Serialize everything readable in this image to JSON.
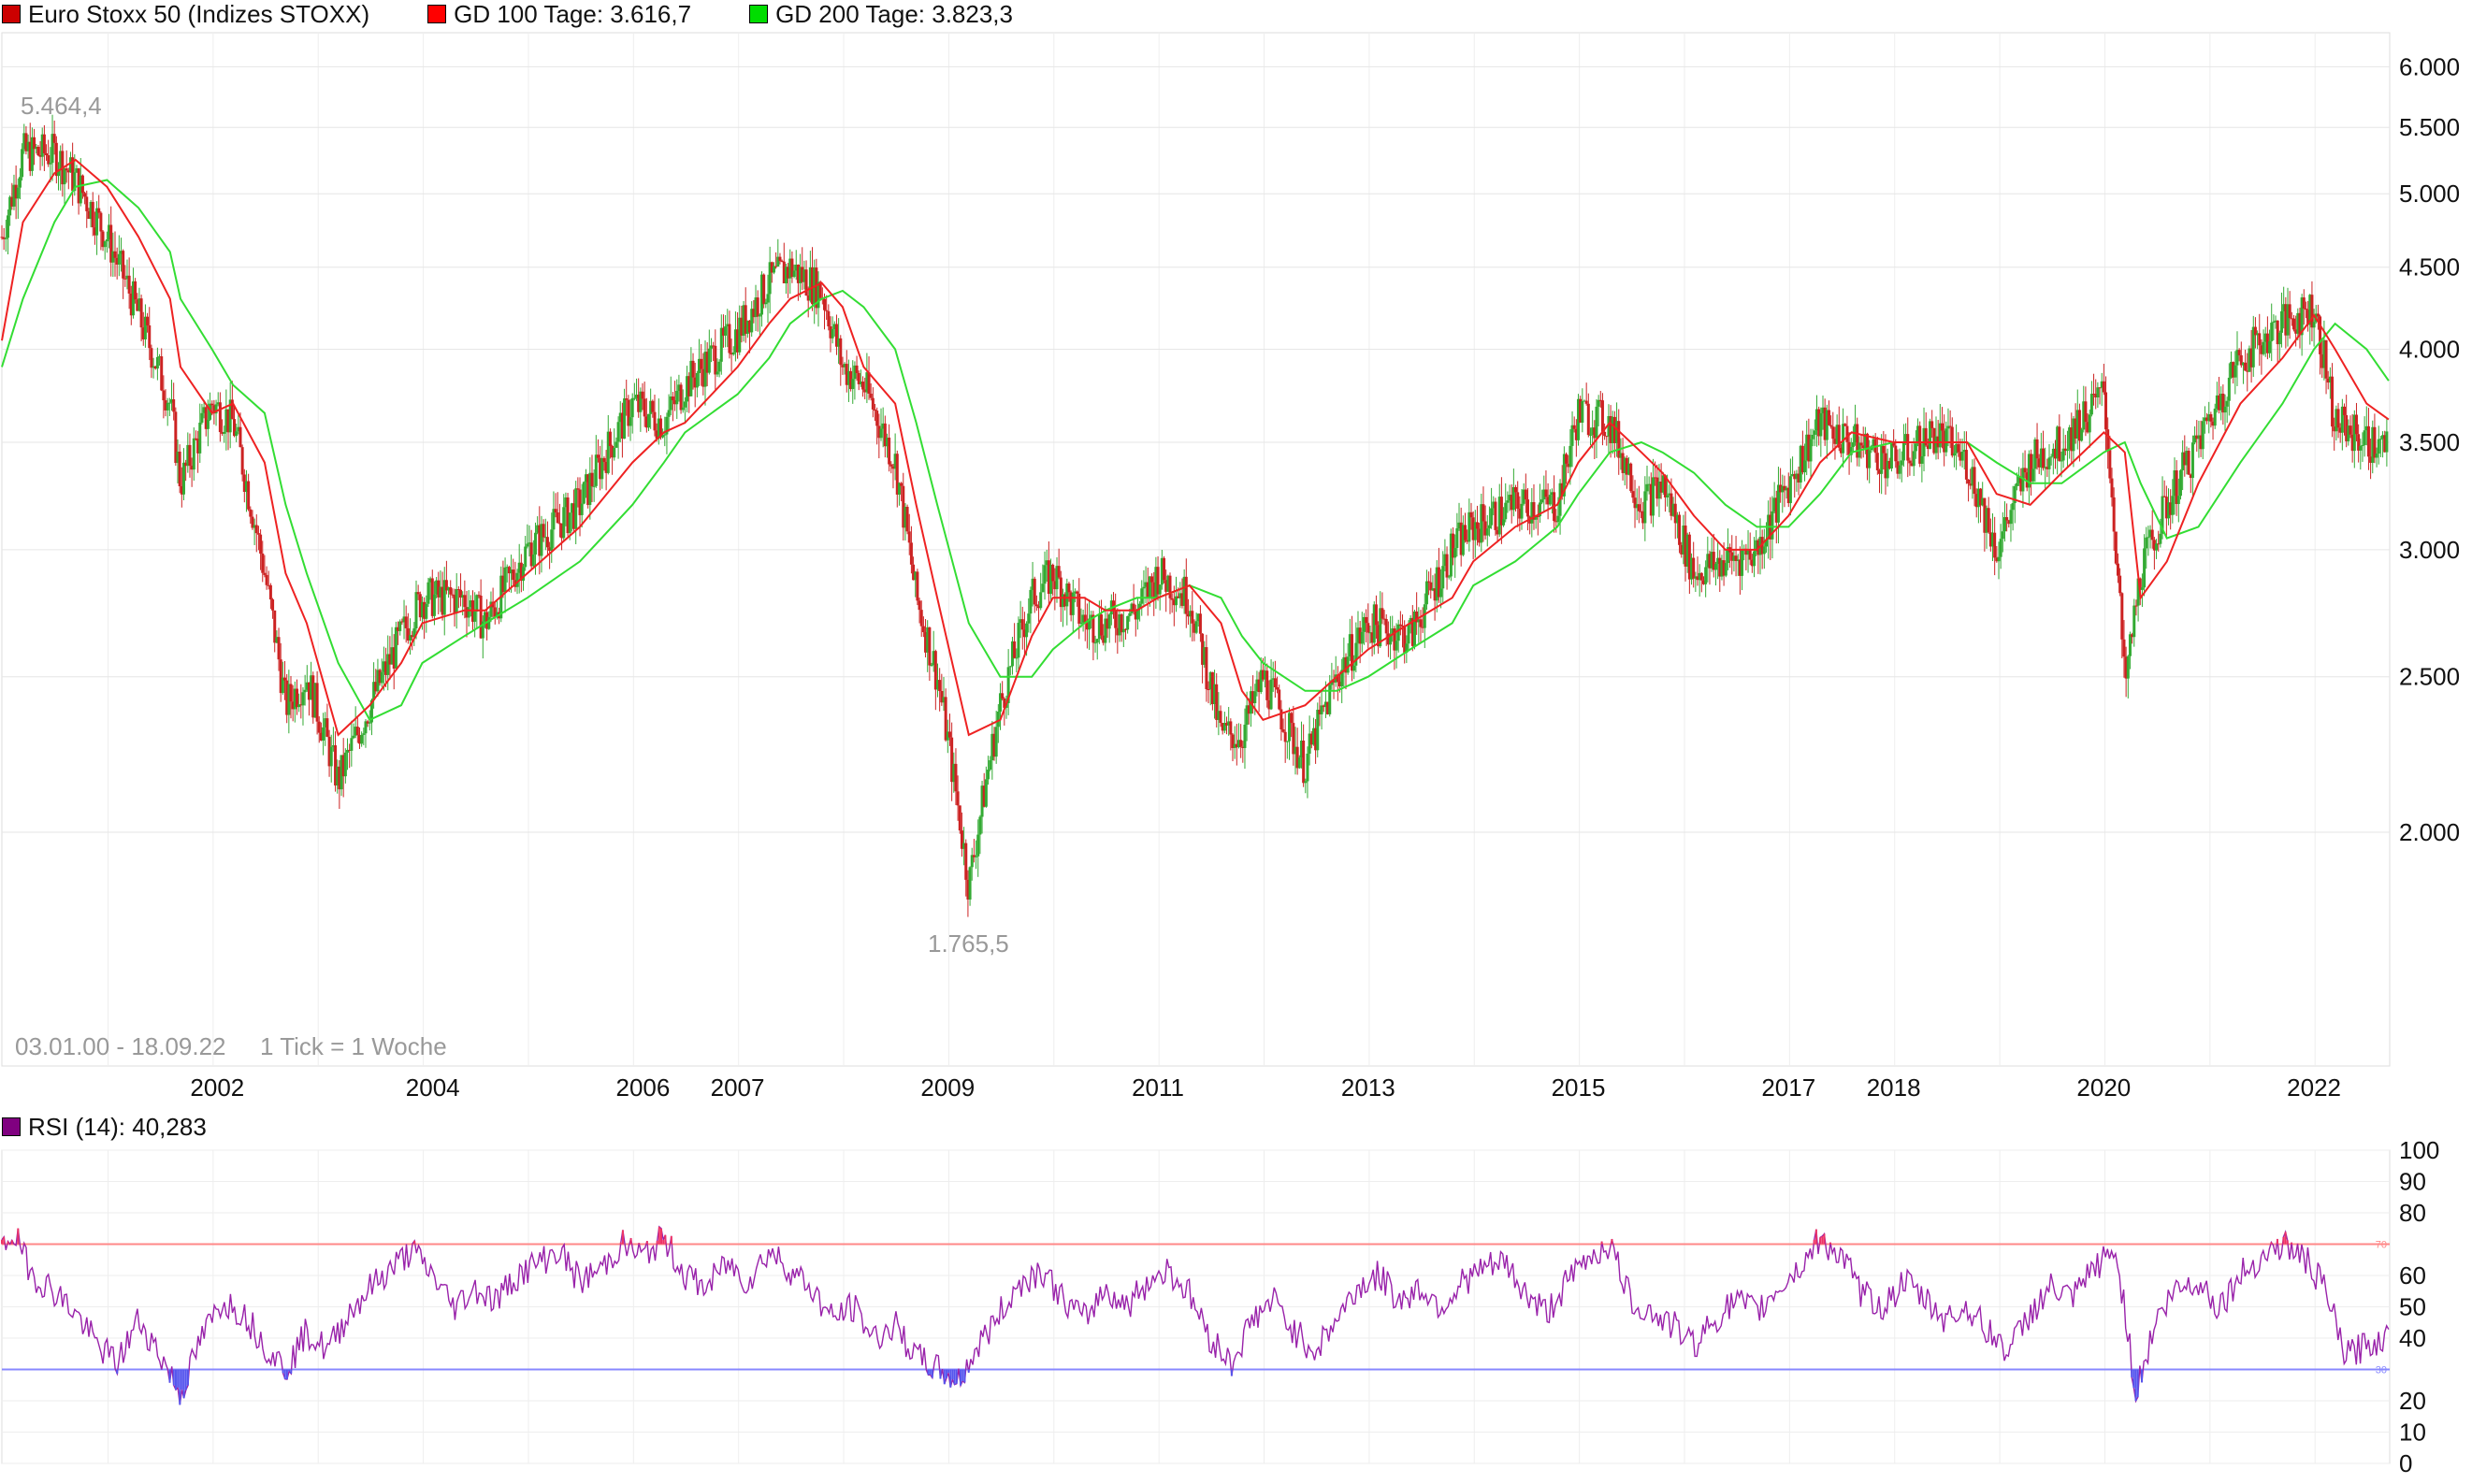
{
  "legend_top": [
    {
      "label": "Euro Stoxx 50 (Indizes STOXX)",
      "color": "#cc0000"
    },
    {
      "label": "GD 100 Tage: 3.616,7",
      "color": "#ff0000"
    },
    {
      "label": "GD 200 Tage: 3.823,3",
      "color": "#00dd00"
    }
  ],
  "legend_bottom": [
    {
      "label": "RSI (14): 40,283",
      "color": "#800080"
    }
  ],
  "chart_data": [
    {
      "type": "line",
      "subtype": "candlestick with moving averages",
      "title": "Euro Stoxx 50 (Indizes STOXX)",
      "scale": "log",
      "date_range_label": "03.01.00 - 18.09.22",
      "tick_label": "1 Tick = 1 Woche",
      "high_annotation": "5.464,4",
      "low_annotation": "1.765,5",
      "x_tick_labels": [
        "2002",
        "2004",
        "2006",
        "2007",
        "2009",
        "2011",
        "2013",
        "2015",
        "2017",
        "2018",
        "2020",
        "2022"
      ],
      "y_tick_labels": [
        "2.000",
        "2.500",
        "3.000",
        "3.500",
        "4.000",
        "4.500",
        "5.000",
        "5.500",
        "6.000"
      ],
      "ylim": [
        1430,
        6300
      ],
      "grid": true,
      "x": [
        2000.0,
        2000.2,
        2000.5,
        2000.7,
        2001.0,
        2001.3,
        2001.6,
        2001.7,
        2002.0,
        2002.2,
        2002.5,
        2002.7,
        2002.9,
        2003.2,
        2003.5,
        2003.8,
        2004.0,
        2004.4,
        2004.6,
        2005.0,
        2005.5,
        2006.0,
        2006.3,
        2006.5,
        2007.0,
        2007.3,
        2007.5,
        2007.8,
        2008.0,
        2008.2,
        2008.5,
        2008.7,
        2008.9,
        2009.2,
        2009.5,
        2009.8,
        2010.0,
        2010.3,
        2010.5,
        2010.8,
        2011.0,
        2011.3,
        2011.6,
        2011.8,
        2012.0,
        2012.4,
        2012.7,
        2013.0,
        2013.4,
        2013.8,
        2014.0,
        2014.4,
        2014.8,
        2015.0,
        2015.3,
        2015.6,
        2015.8,
        2016.1,
        2016.4,
        2016.7,
        2017.0,
        2017.3,
        2017.6,
        2018.0,
        2018.4,
        2018.7,
        2018.98,
        2019.3,
        2019.6,
        2020.0,
        2020.2,
        2020.35,
        2020.6,
        2020.9,
        2021.3,
        2021.7,
        2022.0,
        2022.2,
        2022.5,
        2022.71
      ],
      "series": [
        {
          "name": "Euro Stoxx 50 (Indizes STOXX)",
          "values": [
            4700,
            5300,
            5300,
            5100,
            4700,
            4200,
            3700,
            3300,
            3700,
            3600,
            2900,
            2400,
            2500,
            2150,
            2400,
            2650,
            2800,
            2800,
            2700,
            3000,
            3200,
            3700,
            3600,
            3800,
            4100,
            4400,
            4500,
            4350,
            3900,
            3800,
            3400,
            2800,
            2500,
            1850,
            2400,
            2800,
            2900,
            2700,
            2700,
            2750,
            2900,
            2800,
            2300,
            2300,
            2500,
            2200,
            2500,
            2700,
            2650,
            3000,
            3100,
            3200,
            3200,
            3650,
            3600,
            3200,
            3300,
            2900,
            2950,
            3000,
            3300,
            3600,
            3500,
            3400,
            3550,
            3400,
            3000,
            3400,
            3500,
            3750,
            2450,
            2900,
            3200,
            3500,
            3950,
            4150,
            4250,
            3600,
            3500,
            3450
          ]
        },
        {
          "name": "GD 100 Tage: 3.616,7",
          "values": [
            4050,
            4800,
            5150,
            5250,
            5050,
            4700,
            4300,
            3900,
            3650,
            3700,
            3400,
            2900,
            2700,
            2300,
            2400,
            2550,
            2700,
            2750,
            2750,
            2900,
            3100,
            3400,
            3550,
            3600,
            3900,
            4150,
            4300,
            4400,
            4250,
            3900,
            3700,
            3200,
            2800,
            2300,
            2350,
            2650,
            2800,
            2800,
            2750,
            2750,
            2800,
            2850,
            2700,
            2450,
            2350,
            2400,
            2500,
            2600,
            2700,
            2800,
            2950,
            3100,
            3200,
            3400,
            3600,
            3450,
            3350,
            3150,
            3000,
            3000,
            3150,
            3400,
            3550,
            3500,
            3500,
            3500,
            3250,
            3200,
            3350,
            3550,
            3450,
            2800,
            2950,
            3300,
            3700,
            3950,
            4200,
            4000,
            3700,
            3616.7
          ]
        },
        {
          "name": "GD 200 Tage: 3.823,3",
          "values": [
            3900,
            4300,
            4800,
            5050,
            5100,
            4900,
            4600,
            4300,
            4000,
            3800,
            3650,
            3200,
            2900,
            2550,
            2350,
            2400,
            2550,
            2650,
            2700,
            2800,
            2950,
            3200,
            3400,
            3550,
            3750,
            3950,
            4150,
            4300,
            4350,
            4250,
            4000,
            3600,
            3200,
            2700,
            2500,
            2500,
            2600,
            2700,
            2750,
            2800,
            2800,
            2850,
            2800,
            2650,
            2550,
            2450,
            2450,
            2500,
            2600,
            2700,
            2850,
            2950,
            3100,
            3250,
            3450,
            3500,
            3450,
            3350,
            3200,
            3100,
            3100,
            3250,
            3450,
            3500,
            3500,
            3500,
            3400,
            3300,
            3300,
            3450,
            3500,
            3300,
            3050,
            3100,
            3400,
            3700,
            4000,
            4150,
            4000,
            3823.3
          ]
        }
      ]
    },
    {
      "type": "line",
      "title": "RSI (14): 40,283",
      "ylim": [
        0,
        100
      ],
      "y_tick_labels": [
        "100",
        "90",
        "80",
        "60",
        "50",
        "40",
        "20",
        "10",
        "0"
      ],
      "reference_lines": [
        {
          "value": 70,
          "label": "70",
          "color": "#ff8888"
        },
        {
          "value": 30,
          "label": "30",
          "color": "#8888ff"
        }
      ],
      "x": [
        2000.0,
        2000.1,
        2000.3,
        2000.5,
        2000.7,
        2000.9,
        2001.1,
        2001.3,
        2001.5,
        2001.7,
        2001.9,
        2002.1,
        2002.3,
        2002.5,
        2002.7,
        2002.9,
        2003.1,
        2003.3,
        2003.5,
        2003.7,
        2003.9,
        2004.1,
        2004.3,
        2004.5,
        2004.7,
        2004.9,
        2005.1,
        2005.3,
        2005.5,
        2005.7,
        2005.9,
        2006.1,
        2006.3,
        2006.5,
        2006.7,
        2006.9,
        2007.1,
        2007.3,
        2007.5,
        2007.7,
        2007.9,
        2008.1,
        2008.3,
        2008.5,
        2008.7,
        2008.9,
        2009.1,
        2009.3,
        2009.5,
        2009.7,
        2009.9,
        2010.1,
        2010.3,
        2010.5,
        2010.7,
        2010.9,
        2011.1,
        2011.3,
        2011.5,
        2011.7,
        2011.9,
        2012.1,
        2012.3,
        2012.5,
        2012.7,
        2012.9,
        2013.1,
        2013.3,
        2013.5,
        2013.7,
        2013.9,
        2014.1,
        2014.3,
        2014.5,
        2014.7,
        2014.9,
        2015.1,
        2015.3,
        2015.5,
        2015.7,
        2015.9,
        2016.1,
        2016.3,
        2016.5,
        2016.7,
        2016.9,
        2017.1,
        2017.3,
        2017.5,
        2017.7,
        2017.9,
        2018.1,
        2018.3,
        2018.5,
        2018.7,
        2018.9,
        2019.1,
        2019.3,
        2019.5,
        2019.7,
        2019.9,
        2020.1,
        2020.2,
        2020.3,
        2020.5,
        2020.7,
        2020.9,
        2021.1,
        2021.3,
        2021.5,
        2021.7,
        2021.9,
        2022.1,
        2022.3,
        2022.5,
        2022.71
      ],
      "series": [
        {
          "name": "RSI (14): 40,283",
          "values": [
            68,
            74,
            60,
            55,
            48,
            38,
            32,
            46,
            35,
            22,
            40,
            52,
            48,
            38,
            30,
            42,
            36,
            48,
            56,
            62,
            68,
            60,
            50,
            56,
            52,
            60,
            64,
            68,
            58,
            62,
            70,
            66,
            72,
            60,
            56,
            64,
            58,
            68,
            62,
            56,
            46,
            50,
            40,
            44,
            34,
            30,
            26,
            38,
            48,
            58,
            62,
            52,
            46,
            56,
            50,
            58,
            62,
            54,
            40,
            32,
            46,
            52,
            42,
            36,
            46,
            56,
            60,
            52,
            56,
            50,
            58,
            62,
            64,
            54,
            48,
            58,
            66,
            70,
            52,
            48,
            44,
            38,
            46,
            52,
            48,
            56,
            62,
            72,
            66,
            54,
            50,
            58,
            52,
            46,
            50,
            42,
            36,
            48,
            56,
            52,
            62,
            68,
            50,
            22,
            46,
            56,
            58,
            50,
            60,
            66,
            70,
            66,
            56,
            34,
            38,
            40.283
          ]
        }
      ]
    }
  ]
}
